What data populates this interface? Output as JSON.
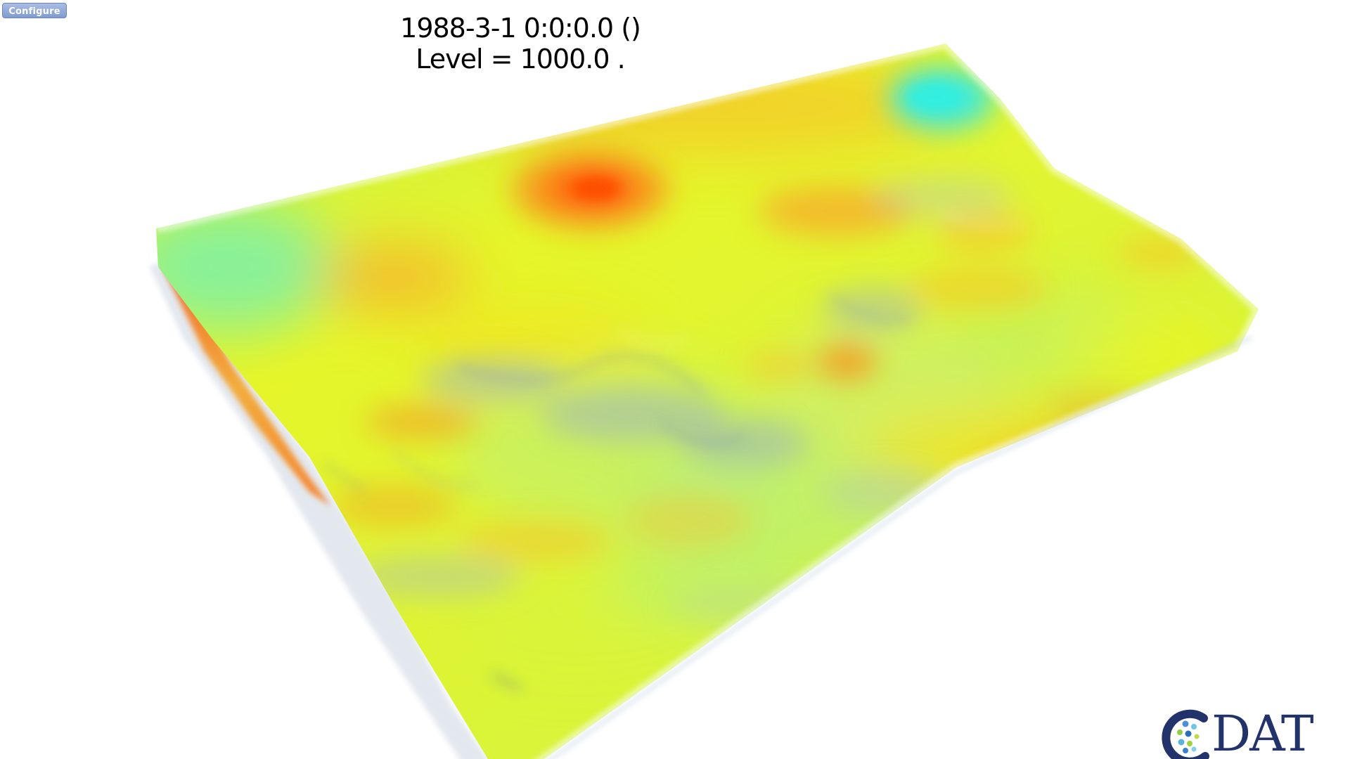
{
  "toolbar": {
    "configure_label": "Configure"
  },
  "plot": {
    "timestamp": "1988-3-1 0:0:0.0 ()",
    "level_label": "Level = 1000.0 .",
    "colormap": [
      "#3c59a8",
      "#39e9e0",
      "#a8f56a",
      "#eef51e",
      "#f6c72a",
      "#f77a1a",
      "#ff4a07"
    ]
  },
  "logo": {
    "text": "DAT",
    "icon": "cdat-logo-icon"
  }
}
